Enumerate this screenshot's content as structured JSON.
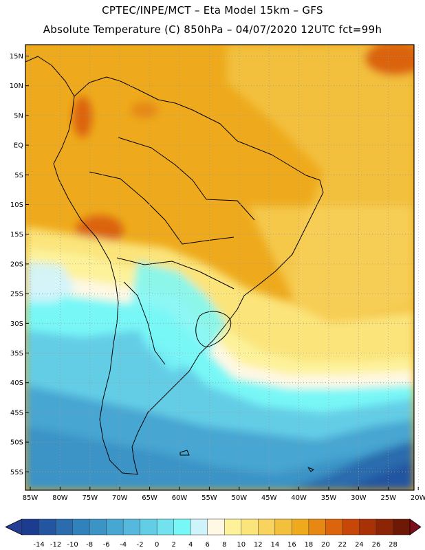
{
  "header": {
    "line1": "CPTEC/INPE/MCT –  Eta Model 15km – GFS",
    "line2": "Absolute Temperature (C) 850hPa – 04/07/2020 12UTC fct=99h"
  },
  "axes": {
    "lat_labels": [
      "15N",
      "10N",
      "5N",
      "EQ",
      "5S",
      "10S",
      "15S",
      "20S",
      "25S",
      "30S",
      "35S",
      "40S",
      "45S",
      "50S",
      "55S"
    ],
    "lon_labels": [
      "85W",
      "80W",
      "75W",
      "70W",
      "65W",
      "60W",
      "55W",
      "50W",
      "45W",
      "40W",
      "35W",
      "30W",
      "25W",
      "20W"
    ]
  },
  "colorbar": {
    "ticks": [
      "-14",
      "-12",
      "-10",
      "-8",
      "-6",
      "-4",
      "-2",
      "0",
      "2",
      "4",
      "6",
      "8",
      "10",
      "12",
      "14",
      "16",
      "18",
      "20",
      "22",
      "24",
      "26",
      "28"
    ],
    "colors": [
      "#1c3d8f",
      "#2355a0",
      "#2a6cad",
      "#3181ba",
      "#3b93c6",
      "#47a6d2",
      "#55b8dc",
      "#63cde6",
      "#72e2ee",
      "#78f7f7",
      "#cff3fb",
      "#fff8e4",
      "#fdf29a",
      "#fbe47a",
      "#f8d45e",
      "#f3c03c",
      "#eeaa1c",
      "#e68812",
      "#dc640c",
      "#c64708",
      "#a83206",
      "#8c2506",
      "#6e1806"
    ],
    "left_arrow_color": "#223f94",
    "right_arrow_color": "#7a0f1e"
  }
}
